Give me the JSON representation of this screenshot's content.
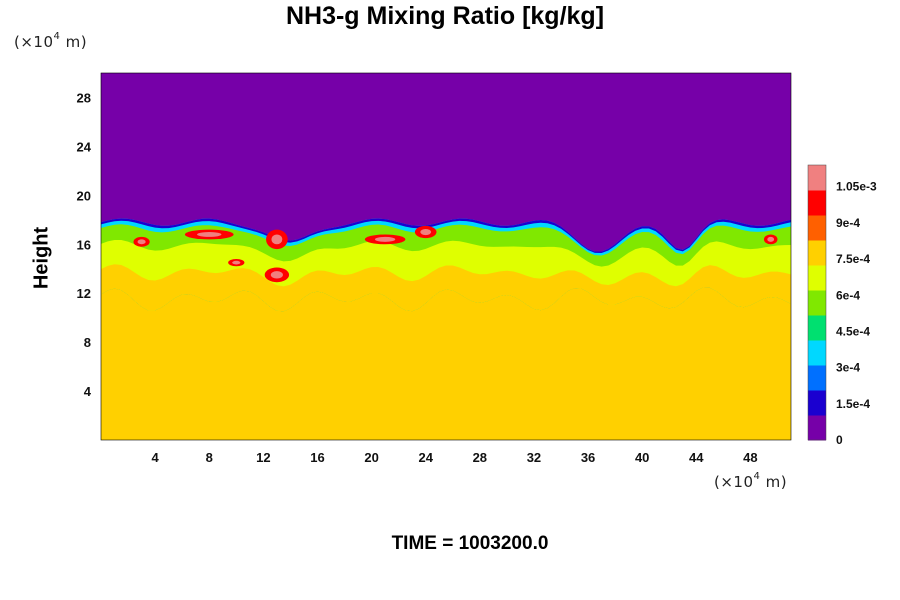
{
  "chart_data": {
    "type": "heatmap",
    "title": "NH3-g Mixing Ratio [kg/kg]",
    "ylabel": "Height",
    "x_unit_text": "(×10",
    "unit_exp": "4",
    "unit_rest": " m)",
    "xlim": [
      0,
      51
    ],
    "ylim": [
      0,
      30
    ],
    "x_ticks": [
      "4",
      "8",
      "12",
      "16",
      "20",
      "24",
      "28",
      "32",
      "36",
      "40",
      "44",
      "48"
    ],
    "y_ticks": [
      "4",
      "8",
      "12",
      "16",
      "20",
      "24",
      "28"
    ],
    "colorbar": {
      "labels": [
        "0",
        "1.5e-4",
        "3e-4",
        "4.5e-4",
        "6e-4",
        "7.5e-4",
        "9e-4",
        "1.05e-3"
      ],
      "label_values": [
        0,
        0.00015,
        0.0003,
        0.00045,
        0.0006,
        0.00075,
        0.0009,
        0.00105
      ],
      "range": [
        0,
        0.00114
      ],
      "colors": [
        "#7600a8",
        "#1a00d0",
        "#0070ff",
        "#00d8ff",
        "#00e070",
        "#80e800",
        "#dfff00",
        "#ffd000",
        "#ff6000",
        "#ff0000",
        "#f08080"
      ]
    },
    "field_summary": {
      "upper_value": 0,
      "lower_value": 0.00078,
      "interface_height": 17.8,
      "mixed_layer_bottom": 11.5
    },
    "footer": "TIME = 1003200.0"
  }
}
